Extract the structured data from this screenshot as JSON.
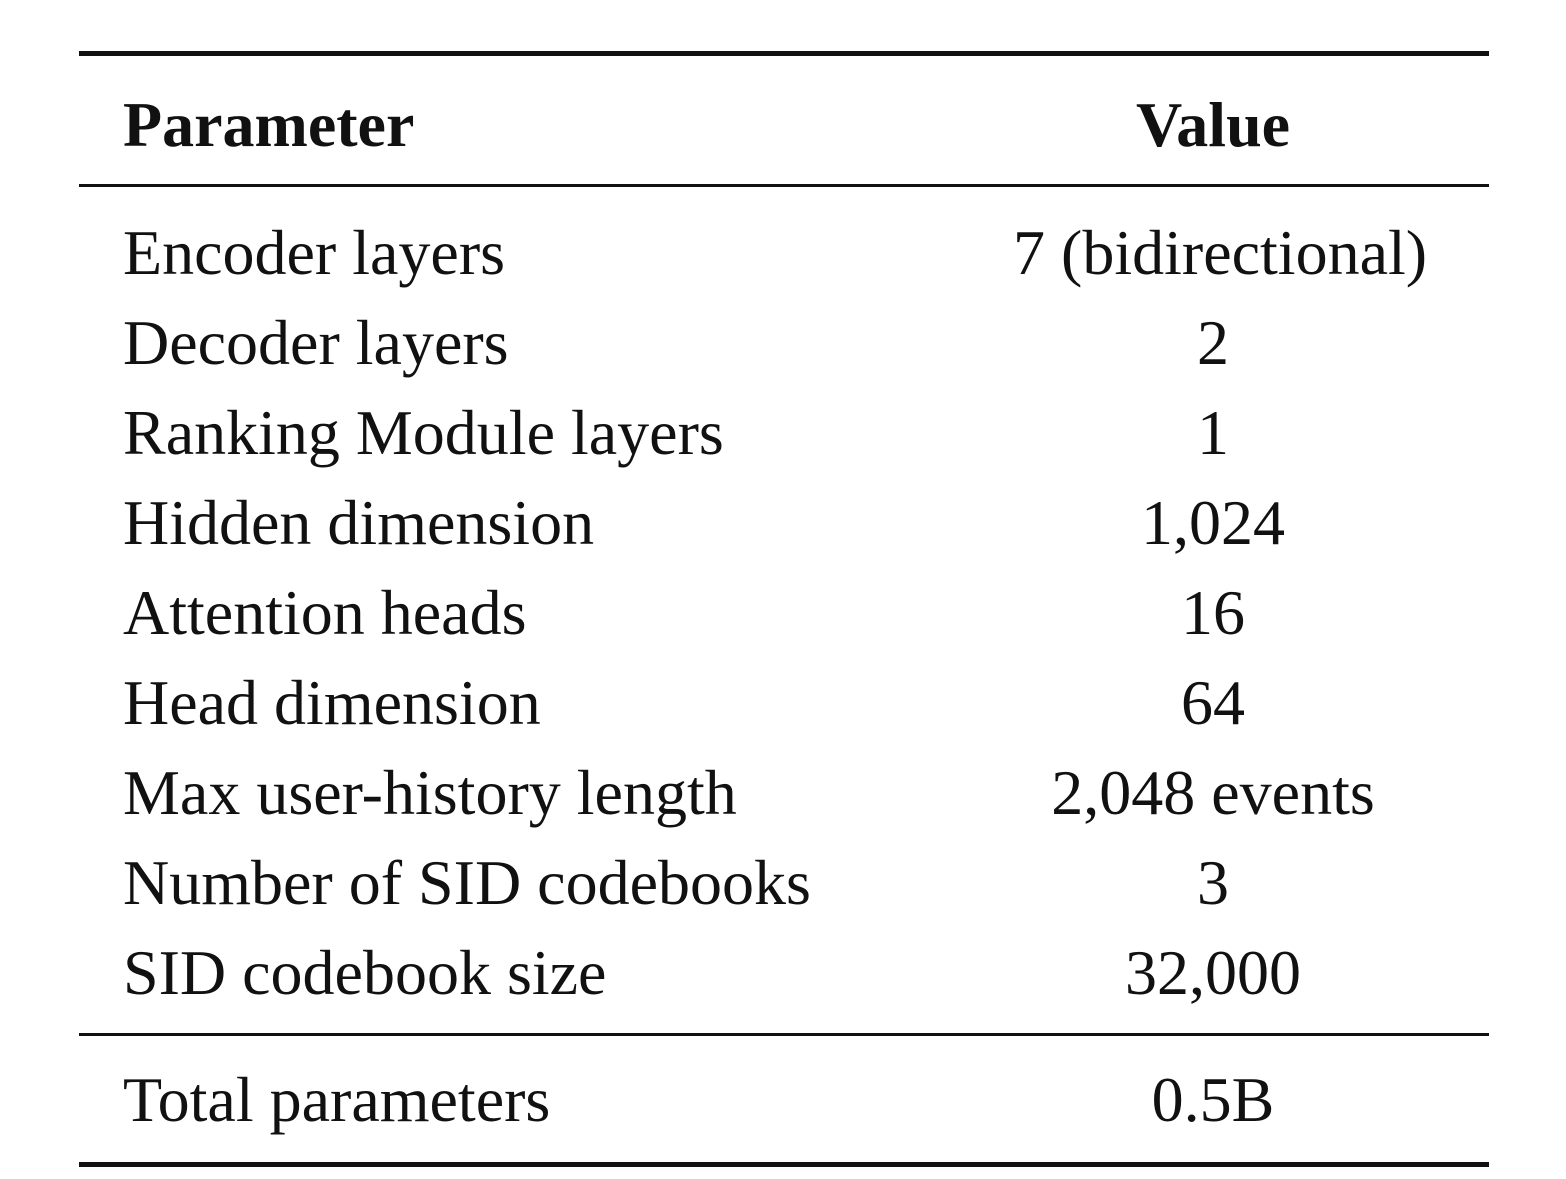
{
  "table": {
    "header": [
      "Parameter",
      "Value"
    ],
    "rows": [
      [
        "Encoder layers",
        "7 (bidirectional)"
      ],
      [
        "Decoder layers",
        "2"
      ],
      [
        "Ranking Module layers",
        "1"
      ],
      [
        "Hidden dimension",
        "1,024"
      ],
      [
        "Attention heads",
        "16"
      ],
      [
        "Head dimension",
        "64"
      ],
      [
        "Max user-history length",
        "2,048 events"
      ],
      [
        "Number of SID codebooks",
        "3"
      ],
      [
        "SID codebook size",
        "32,000"
      ]
    ],
    "footer": [
      "Total parameters",
      "0.5B"
    ]
  }
}
